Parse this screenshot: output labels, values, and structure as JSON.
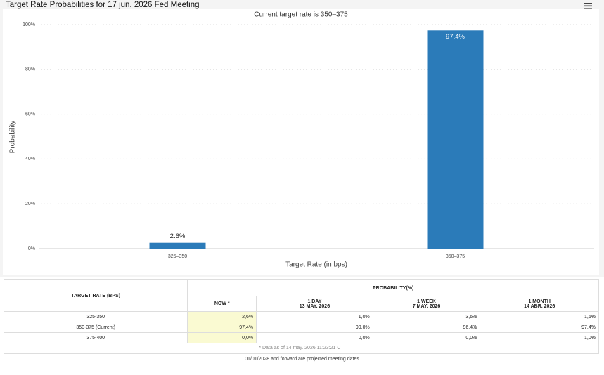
{
  "chart_data": {
    "type": "bar",
    "title": "Target Rate Probabilities for 17 jun. 2026 Fed Meeting",
    "subtitle": "Current target rate is 350–375",
    "x_label": "Target Rate (in bps)",
    "y_label": "Probability",
    "categories": [
      "325–350",
      "350–375"
    ],
    "values": [
      2.6,
      97.4
    ],
    "value_labels": [
      "2.6%",
      "97.4%"
    ],
    "color": "#2b7bb9",
    "ylim": [
      0,
      100
    ],
    "yticks": [
      {
        "value": 0,
        "label": "0%"
      },
      {
        "value": 20,
        "label": "20%"
      },
      {
        "value": 40,
        "label": "40%"
      },
      {
        "value": 60,
        "label": "60%"
      },
      {
        "value": 80,
        "label": "80%"
      },
      {
        "value": 100,
        "label": "100%"
      }
    ],
    "grid": true
  },
  "table": {
    "row_header": "TARGET RATE (BPS)",
    "group_header": "PROBABILITY(%)",
    "columns": [
      {
        "label": "NOW *"
      },
      {
        "label": "1 DAY",
        "date": "13 MAY. 2026"
      },
      {
        "label": "1 WEEK",
        "date": "7 MAY. 2026"
      },
      {
        "label": "1 MONTH",
        "date": "14 ABR. 2026"
      }
    ],
    "rows": [
      [
        "325-350",
        "2,6%",
        "1,0%",
        "3,6%",
        "1,6%"
      ],
      [
        "350-375 (Current)",
        "97,4%",
        "99,0%",
        "96,4%",
        "97,4%"
      ],
      [
        "375-400",
        "0,0%",
        "0,0%",
        "0,0%",
        "1,0%"
      ]
    ],
    "footnote": "* Data as of 14 may. 2026 11:23:21 CT",
    "note": "01/01/2028 and forward are projected meeting dates"
  }
}
